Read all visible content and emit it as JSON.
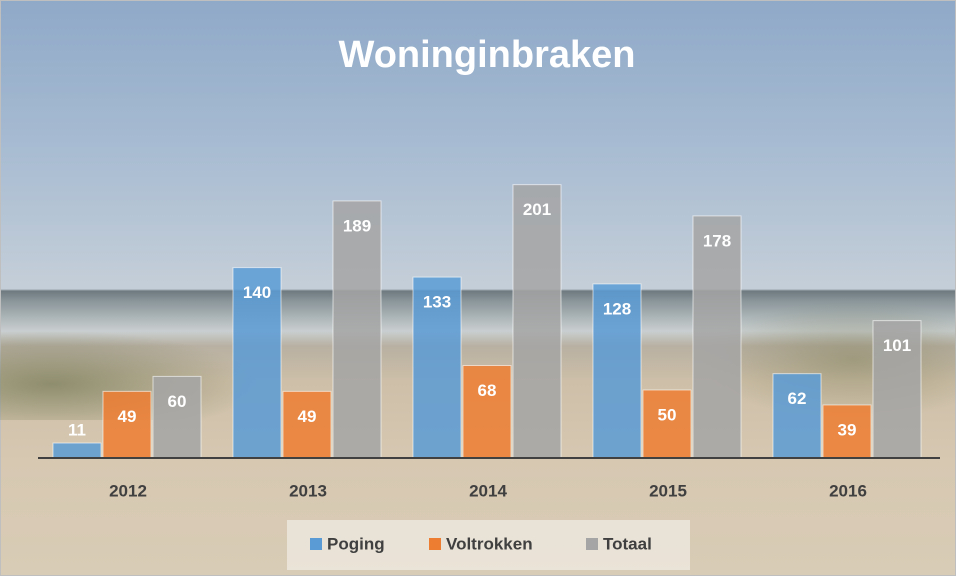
{
  "chart_data": {
    "type": "bar",
    "title": "Woninginbraken",
    "categories": [
      "2012",
      "2013",
      "2014",
      "2015",
      "2016"
    ],
    "series": [
      {
        "name": "Poging",
        "color": "#5b9bd5",
        "values": [
          11,
          140,
          133,
          128,
          62
        ]
      },
      {
        "name": "Voltrokken",
        "color": "#ed7d31",
        "values": [
          49,
          49,
          68,
          50,
          39
        ]
      },
      {
        "name": "Totaal",
        "color": "#a5a5a5",
        "values": [
          60,
          189,
          201,
          178,
          101
        ]
      }
    ],
    "ylim": [
      0,
      250
    ],
    "legend": "bottom"
  }
}
